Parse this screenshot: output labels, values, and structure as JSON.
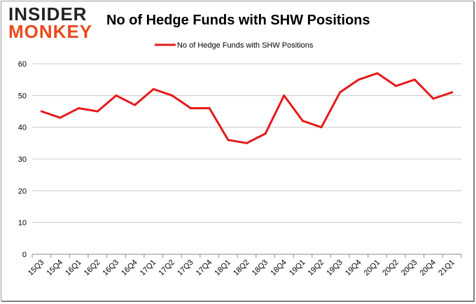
{
  "logo": {
    "line1": "INSIDER",
    "line2": "MONKEY"
  },
  "colors": {
    "series": "#e41a1c",
    "grid": "#c8c8c8",
    "axis": "#888888",
    "text": "#000000"
  },
  "chart_data": {
    "type": "line",
    "title": "No of Hedge Funds with SHW Positions",
    "xlabel": "",
    "ylabel": "",
    "categories": [
      "15Q3",
      "15Q4",
      "16Q1",
      "16Q2",
      "16Q3",
      "16Q4",
      "17Q1",
      "17Q2",
      "17Q3",
      "17Q4",
      "18Q1",
      "18Q2",
      "18Q3",
      "18Q4",
      "19Q1",
      "19Q2",
      "19Q3",
      "19Q4",
      "20Q1",
      "20Q2",
      "20Q3",
      "20Q4",
      "21Q1"
    ],
    "series": [
      {
        "name": "No of Hedge Funds with SHW Positions",
        "values": [
          45,
          43,
          46,
          45,
          50,
          47,
          52,
          50,
          46,
          46,
          36,
          35,
          38,
          50,
          42,
          40,
          51,
          55,
          57,
          53,
          55,
          49,
          51
        ]
      }
    ],
    "ylim": [
      0,
      60
    ],
    "yticks": [
      0,
      10,
      20,
      30,
      40,
      50,
      60
    ],
    "grid": true,
    "legend_position": "top-center"
  }
}
